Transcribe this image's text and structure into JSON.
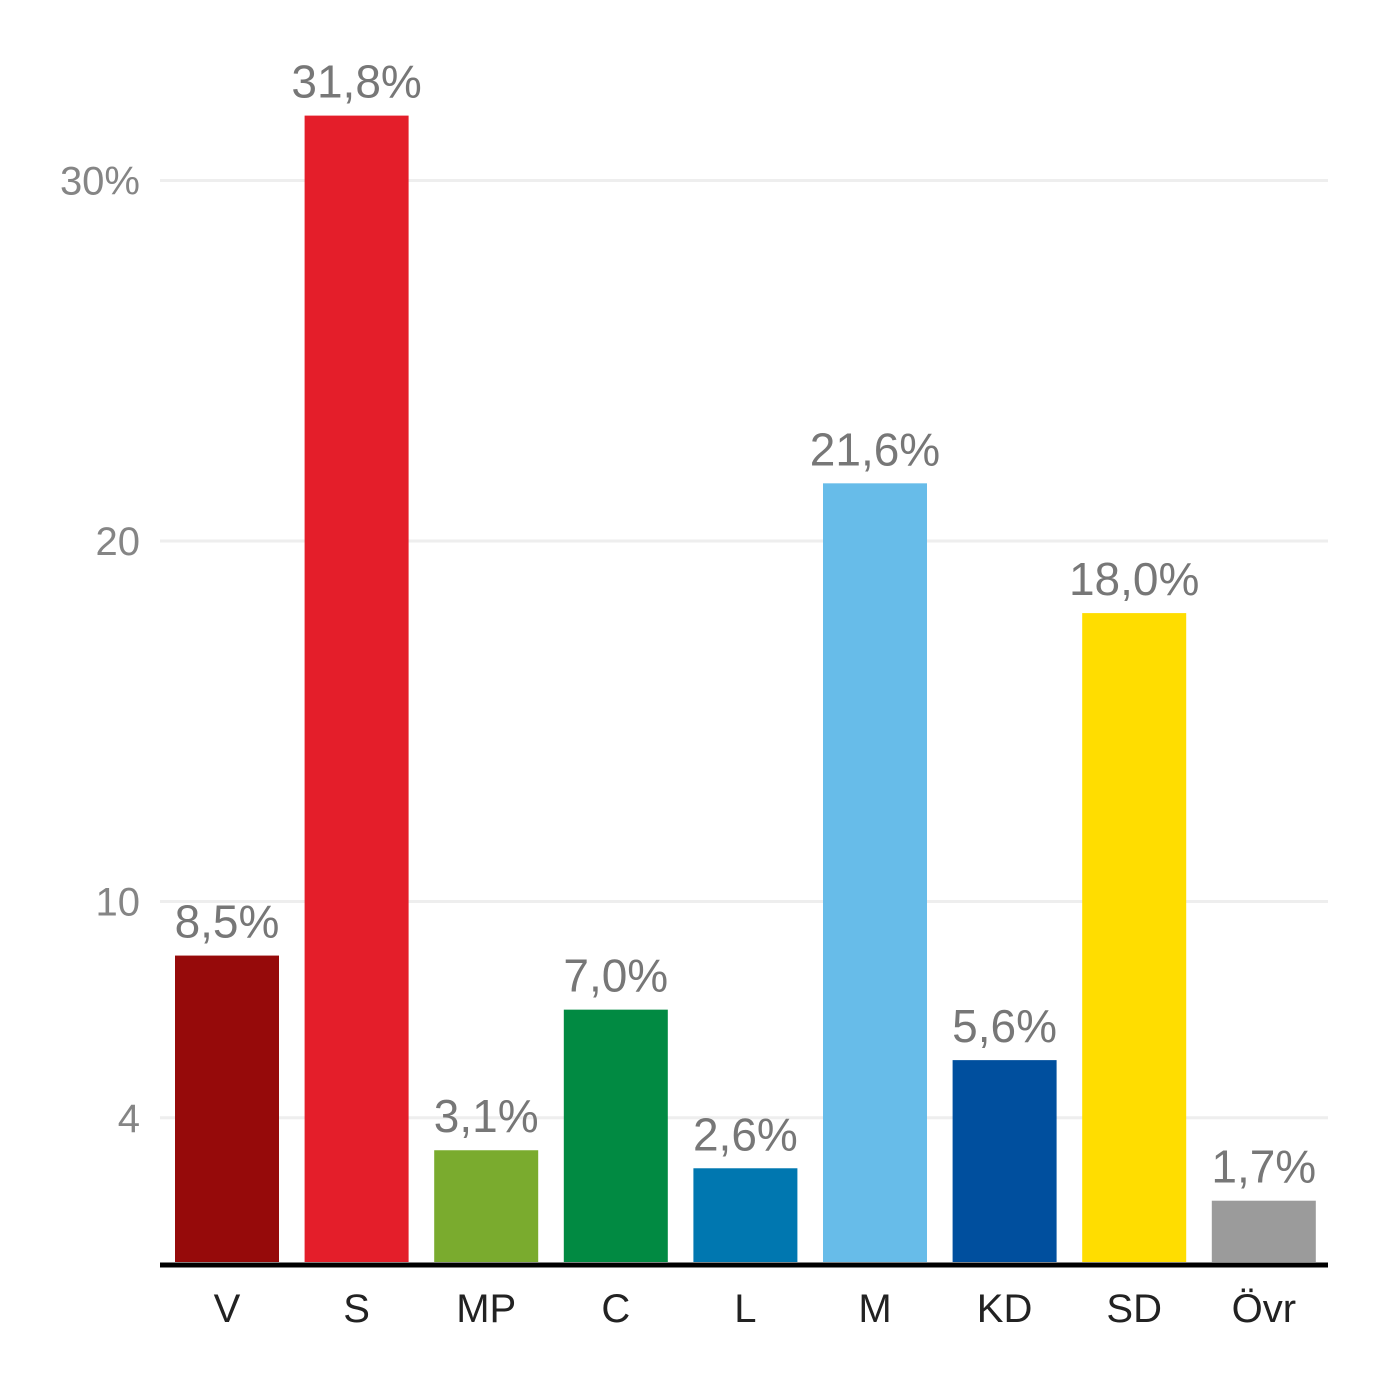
{
  "chart_data": {
    "type": "bar",
    "categories": [
      "V",
      "S",
      "MP",
      "C",
      "L",
      "M",
      "KD",
      "SD",
      "Övr"
    ],
    "values": [
      8.5,
      31.8,
      3.1,
      7.0,
      2.6,
      21.6,
      5.6,
      18.0,
      1.7
    ],
    "value_labels": [
      "8,5%",
      "31,8%",
      "3,1%",
      "7,0%",
      "2,6%",
      "21,6%",
      "5,6%",
      "18,0%",
      "1,7%"
    ],
    "colors": [
      "#960a0a",
      "#e41e2a",
      "#7aab2e",
      "#018a42",
      "#0077b0",
      "#67bce9",
      "#004f9e",
      "#ffdd00",
      "#9b9b9b"
    ],
    "yticks": [
      4,
      10,
      20,
      30
    ],
    "ytick_labels": [
      "4",
      "10",
      "20",
      "30%"
    ],
    "ylim": [
      0,
      33
    ],
    "title": "",
    "xlabel": "",
    "ylabel": "",
    "grid": true,
    "legend": false
  }
}
